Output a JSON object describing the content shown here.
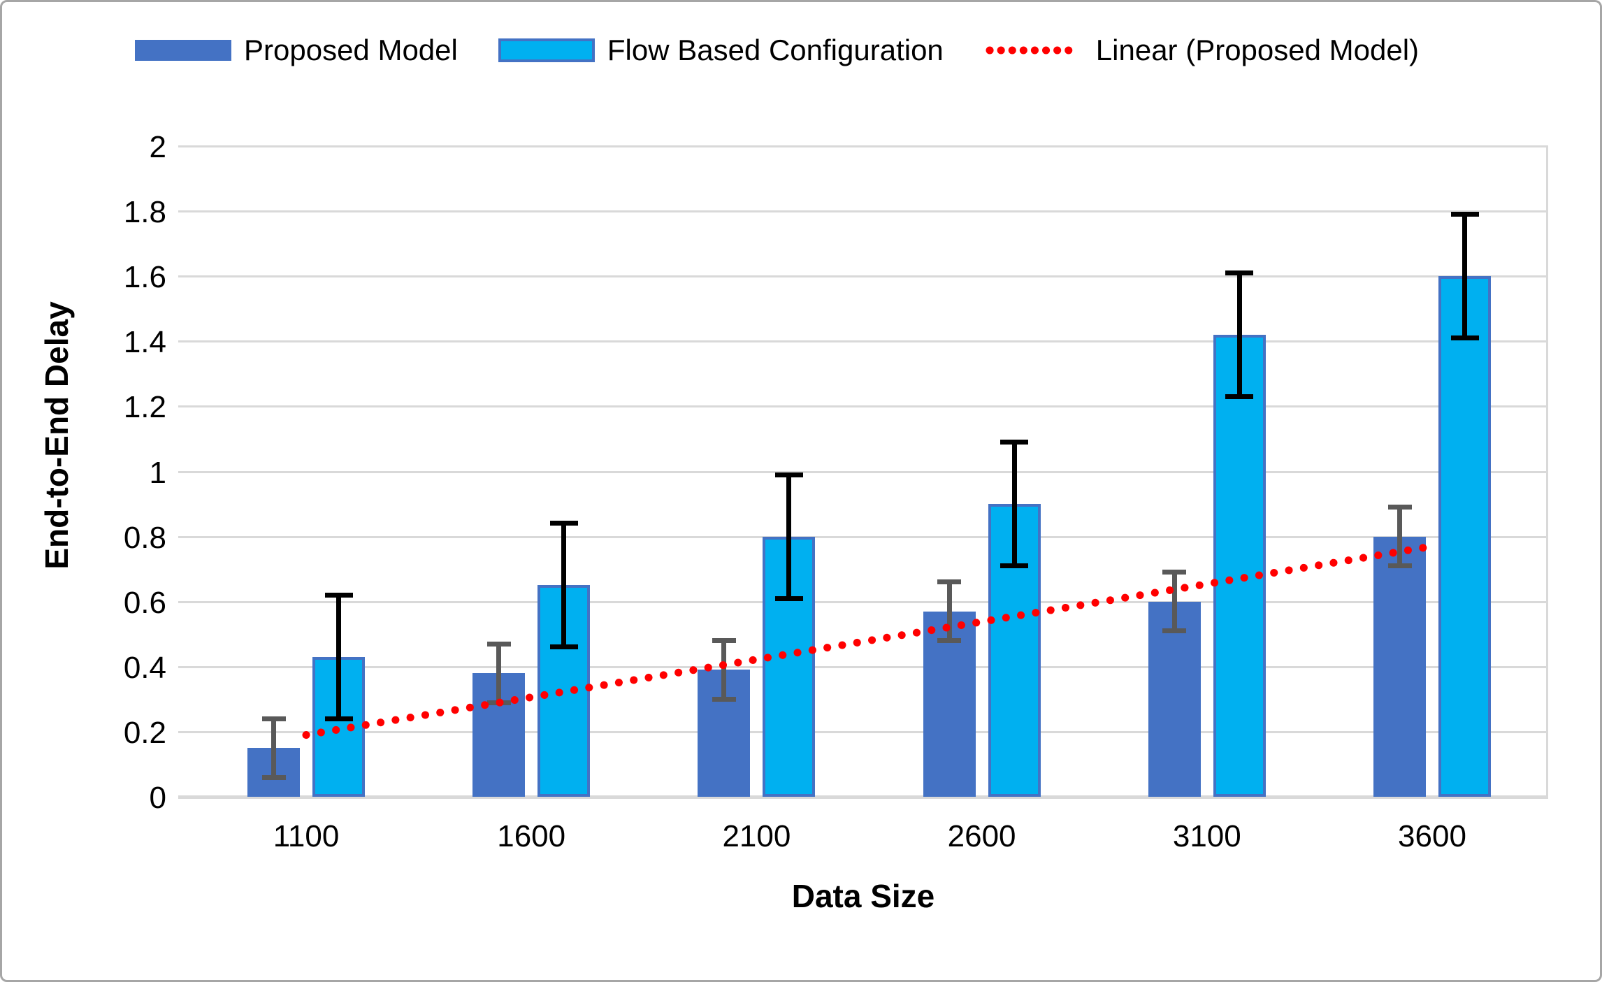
{
  "chart_data": {
    "type": "bar",
    "title": "",
    "xlabel": "Data Size",
    "ylabel": "End-to-End Delay",
    "categories": [
      "1100",
      "1600",
      "2100",
      "2600",
      "3100",
      "3600"
    ],
    "series": [
      {
        "name": "Proposed Model",
        "values": [
          0.15,
          0.38,
          0.39,
          0.57,
          0.6,
          0.8
        ],
        "error_plus": 0.09,
        "error_minus": 0.09,
        "color": "#4472C4",
        "error_color": "#595959"
      },
      {
        "name": "Flow Based Configuration",
        "values": [
          0.43,
          0.65,
          0.8,
          0.9,
          1.42,
          1.6
        ],
        "error_plus": 0.19,
        "error_minus": 0.19,
        "color": "#00B0F0",
        "border_color": "#4472C4",
        "error_color": "#000000"
      }
    ],
    "trendline": {
      "label": "Linear (Proposed Model)",
      "color": "#FF0000",
      "style": "dotted",
      "x_start": "1100",
      "x_end": "3600",
      "y_start": 0.19,
      "y_end": 0.77
    },
    "ylim": [
      0,
      2
    ],
    "ytick_step": 0.2,
    "ytick_labels": [
      "0",
      "0.2",
      "0.4",
      "0.6",
      "0.8",
      "1",
      "1.2",
      "1.4",
      "1.6",
      "1.8",
      "2"
    ],
    "grid": true,
    "legend_position": "top",
    "gridline_color": "#D9D9D9",
    "text_color": "#000000"
  }
}
